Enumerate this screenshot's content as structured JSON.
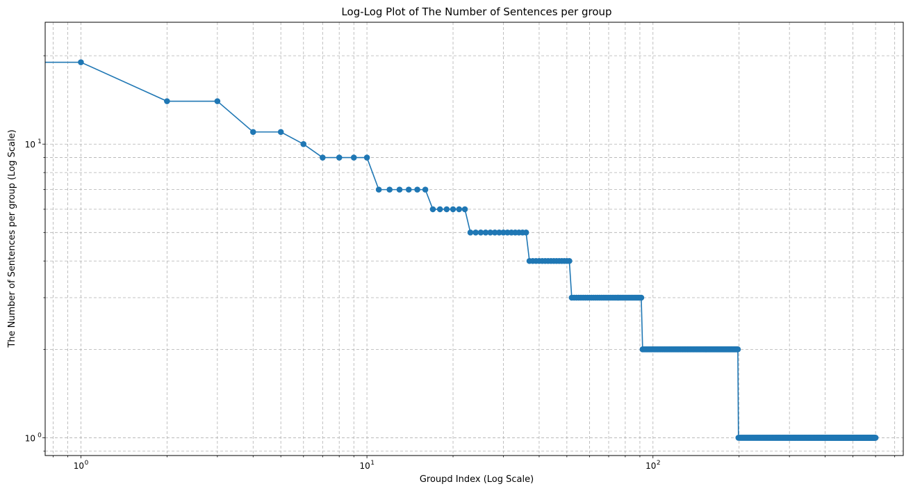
{
  "chart_data": {
    "type": "line",
    "title": "Log-Log Plot of The Number of Sentences per group",
    "xlabel": "Groupd Index (Log Scale)",
    "ylabel": "The Number of Sentences per group (Log Scale)",
    "x_scale": "log",
    "y_scale": "log",
    "xlim": [
      0.75,
      750
    ],
    "ylim": [
      0.87,
      26
    ],
    "grid": true,
    "legend": "none",
    "marker": "circle",
    "color": "#1f77b4",
    "x_ticks": [
      {
        "value": 1,
        "base": "10",
        "exp": "0"
      },
      {
        "value": 10,
        "base": "10",
        "exp": "1"
      },
      {
        "value": 100,
        "base": "10",
        "exp": "2"
      }
    ],
    "y_ticks": [
      {
        "value": 1,
        "base": "10",
        "exp": "0"
      },
      {
        "value": 10,
        "base": "10",
        "exp": "1"
      }
    ],
    "series": [
      {
        "runs": [
          {
            "x_start": 0.5,
            "x_end": 1,
            "y": 19
          },
          {
            "x_start": 2,
            "x_end": 3,
            "y": 14
          },
          {
            "x_start": 4,
            "x_end": 5,
            "y": 11
          },
          {
            "x_start": 6,
            "x_end": 6,
            "y": 10
          },
          {
            "x_start": 7,
            "x_end": 10,
            "y": 9
          },
          {
            "x_start": 11,
            "x_end": 16,
            "y": 7
          },
          {
            "x_start": 17,
            "x_end": 22,
            "y": 6
          },
          {
            "x_start": 23,
            "x_end": 36,
            "y": 5
          },
          {
            "x_start": 37,
            "x_end": 51,
            "y": 4
          },
          {
            "x_start": 52,
            "x_end": 91,
            "y": 3
          },
          {
            "x_start": 92,
            "x_end": 198,
            "y": 2
          },
          {
            "x_start": 199,
            "x_end": 600,
            "y": 1
          }
        ]
      }
    ]
  }
}
